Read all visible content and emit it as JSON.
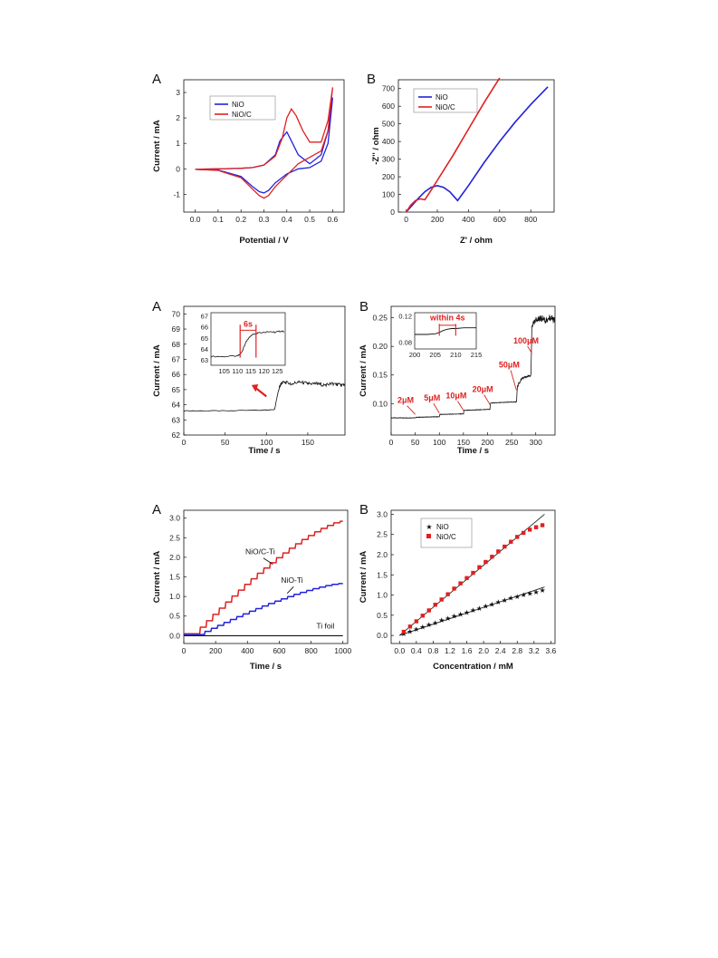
{
  "colors": {
    "nio": "#2222dd",
    "nioc": "#e02020",
    "black": "#111111"
  },
  "chart_data": [
    {
      "type": "line",
      "panel_label": "A",
      "xlabel": "Potential / V",
      "ylabel": "Current / mA",
      "xlim": [
        -0.05,
        0.65
      ],
      "ylim": [
        -1.7,
        3.5
      ],
      "xticks": [
        "0.0",
        "0.1",
        "0.2",
        "0.3",
        "0.4",
        "0.5",
        "0.6"
      ],
      "xtick_values": [
        0,
        0.1,
        0.2,
        0.3,
        0.4,
        0.5,
        0.6
      ],
      "yticks": [
        "-1",
        "0",
        "1",
        "2",
        "3"
      ],
      "ytick_values": [
        -1,
        0,
        1,
        2,
        3
      ],
      "legend": [
        "NiO",
        "NiO/C"
      ],
      "legend_position": "top-left",
      "series": [
        {
          "name": "NiO",
          "color": "nio",
          "x": [
            0,
            0.1,
            0.2,
            0.25,
            0.28,
            0.3,
            0.32,
            0.35,
            0.4,
            0.45,
            0.5,
            0.55,
            0.58,
            0.6,
            0.58,
            0.55,
            0.5,
            0.45,
            0.42,
            0.4,
            0.37,
            0.35,
            0.3,
            0.25,
            0.2,
            0.1,
            0
          ],
          "y": [
            -0.02,
            -0.05,
            -0.3,
            -0.7,
            -0.9,
            -0.95,
            -0.85,
            -0.55,
            -0.2,
            0,
            0.05,
            0.3,
            1.0,
            2.8,
            1.5,
            0.55,
            0.2,
            0.55,
            1.1,
            1.45,
            1.1,
            0.55,
            0.15,
            0.05,
            0.02,
            0,
            -0.02
          ]
        },
        {
          "name": "NiO/C",
          "color": "nioc",
          "x": [
            0,
            0.1,
            0.2,
            0.25,
            0.28,
            0.3,
            0.32,
            0.35,
            0.4,
            0.45,
            0.5,
            0.55,
            0.58,
            0.6,
            0.58,
            0.55,
            0.5,
            0.47,
            0.44,
            0.42,
            0.4,
            0.38,
            0.35,
            0.3,
            0.25,
            0.2,
            0.1,
            0
          ],
          "y": [
            -0.02,
            -0.06,
            -0.35,
            -0.8,
            -1.05,
            -1.15,
            -1.05,
            -0.7,
            -0.25,
            0.2,
            0.45,
            0.7,
            1.5,
            3.2,
            1.9,
            1.05,
            1.05,
            1.5,
            2.1,
            2.35,
            2.0,
            1.2,
            0.5,
            0.15,
            0.05,
            0.02,
            0,
            -0.02
          ]
        }
      ]
    },
    {
      "type": "line",
      "panel_label": "B",
      "xlabel": "Z' / ohm",
      "ylabel": "-Z'' / ohm",
      "xlim": [
        -50,
        950
      ],
      "ylim": [
        0,
        750
      ],
      "xticks": [
        "0",
        "200",
        "400",
        "600",
        "800"
      ],
      "xtick_values": [
        0,
        200,
        400,
        600,
        800
      ],
      "yticks": [
        "0",
        "100",
        "200",
        "300",
        "400",
        "500",
        "600",
        "700"
      ],
      "ytick_values": [
        0,
        100,
        200,
        300,
        400,
        500,
        600,
        700
      ],
      "legend": [
        "NiO",
        "NiO/C"
      ],
      "legend_position": "top-left",
      "series": [
        {
          "name": "NiO",
          "color": "nio",
          "x": [
            0,
            40,
            80,
            120,
            160,
            200,
            240,
            280,
            330,
            400,
            500,
            600,
            700,
            800,
            910
          ],
          "y": [
            0,
            40,
            80,
            115,
            140,
            150,
            140,
            115,
            65,
            150,
            280,
            400,
            510,
            610,
            710
          ]
        },
        {
          "name": "NiO/C",
          "color": "nioc",
          "x": [
            0,
            30,
            60,
            90,
            120,
            150,
            200,
            300,
            400,
            500,
            600
          ],
          "y": [
            0,
            40,
            65,
            75,
            70,
            110,
            180,
            320,
            470,
            620,
            760
          ]
        }
      ]
    },
    {
      "type": "line",
      "panel_label": "A",
      "xlabel": "Time / s",
      "ylabel": "Current / mA",
      "xlim": [
        0,
        195
      ],
      "ylim": [
        62,
        70.5
      ],
      "xticks": [
        "0",
        "50",
        "100",
        "150"
      ],
      "xtick_values": [
        0,
        50,
        100,
        150
      ],
      "yticks": [
        "62",
        "63",
        "64",
        "65",
        "66",
        "67",
        "68",
        "69",
        "70"
      ],
      "ytick_values": [
        62,
        63,
        64,
        65,
        66,
        67,
        68,
        69,
        70
      ],
      "series": [
        {
          "name": "",
          "color": "black",
          "x": [
            0,
            50,
            100,
            110,
            112,
            114,
            116,
            118,
            120,
            130,
            140,
            150,
            160,
            170,
            180,
            190,
            195
          ],
          "y": [
            63.6,
            63.6,
            63.65,
            63.7,
            64.3,
            64.8,
            65.2,
            65.4,
            65.5,
            65.4,
            65.5,
            65.4,
            65.4,
            65.3,
            65.4,
            65.3,
            65.3
          ]
        }
      ],
      "inset": {
        "xlim": [
          100,
          128
        ],
        "ylim": [
          62.5,
          67.3
        ],
        "xticks": [
          "105",
          "110",
          "115",
          "120",
          "125"
        ],
        "xtick_values": [
          105,
          110,
          115,
          120,
          125
        ],
        "yticks": [
          "63",
          "64",
          "65",
          "66",
          "67"
        ],
        "ytick_values": [
          63,
          64,
          65,
          66,
          67
        ],
        "x": [
          100,
          105,
          110,
          111,
          112,
          113,
          114,
          115,
          116,
          117,
          118,
          120,
          122,
          124,
          126,
          128
        ],
        "y": [
          63.3,
          63.3,
          63.35,
          63.5,
          63.9,
          64.5,
          64.9,
          65.2,
          65.35,
          65.4,
          65.5,
          65.5,
          65.6,
          65.5,
          65.6,
          65.6
        ],
        "annotation": "6s"
      }
    },
    {
      "type": "line",
      "panel_label": "B",
      "xlabel": "Time / s",
      "ylabel": "Current / mA",
      "xlim": [
        0,
        340
      ],
      "ylim": [
        0.045,
        0.27
      ],
      "xticks": [
        "0",
        "50",
        "100",
        "150",
        "200",
        "250",
        "300"
      ],
      "xtick_values": [
        0,
        50,
        100,
        150,
        200,
        250,
        300
      ],
      "yticks": [
        "0.10",
        "0.15",
        "0.20",
        "0.25"
      ],
      "ytick_values": [
        0.1,
        0.15,
        0.2,
        0.25
      ],
      "annotations": [
        "2μM",
        "5μM",
        "10μM",
        "20μM",
        "50μM",
        "100μM"
      ],
      "series": [
        {
          "name": "",
          "color": "black",
          "x": [
            0,
            50,
            51,
            100,
            101,
            150,
            151,
            205,
            206,
            260,
            262,
            270,
            290,
            292,
            300,
            310,
            320,
            330,
            340
          ],
          "y": [
            0.075,
            0.075,
            0.076,
            0.077,
            0.081,
            0.082,
            0.088,
            0.09,
            0.101,
            0.103,
            0.13,
            0.143,
            0.15,
            0.235,
            0.245,
            0.25,
            0.245,
            0.25,
            0.245
          ]
        }
      ],
      "inset": {
        "xlim": [
          200,
          215
        ],
        "ylim": [
          0.07,
          0.125
        ],
        "xticks": [
          "200",
          "205",
          "210",
          "215"
        ],
        "xtick_values": [
          200,
          205,
          210,
          215
        ],
        "yticks": [
          "0.08",
          "0.12"
        ],
        "ytick_values": [
          0.08,
          0.12
        ],
        "x": [
          200,
          203,
          205,
          206,
          207,
          208,
          209,
          210,
          212,
          215
        ],
        "y": [
          0.092,
          0.092,
          0.093,
          0.095,
          0.098,
          0.1,
          0.101,
          0.101,
          0.102,
          0.102
        ],
        "annotation": "within 4s"
      }
    },
    {
      "type": "line",
      "panel_label": "A",
      "xlabel": "Time / s",
      "ylabel": "Current / mA",
      "xlim": [
        0,
        1030
      ],
      "ylim": [
        -0.2,
        3.2
      ],
      "xticks": [
        "0",
        "200",
        "400",
        "600",
        "800",
        "1000"
      ],
      "xtick_values": [
        0,
        200,
        400,
        600,
        800,
        1000
      ],
      "yticks": [
        "0.0",
        "0.5",
        "1.0",
        "1.5",
        "2.0",
        "2.5",
        "3.0"
      ],
      "ytick_values": [
        0,
        0.5,
        1,
        1.5,
        2,
        2.5,
        3
      ],
      "annotations": [
        "NiO/C-Ti",
        "NiO-Ti",
        "Ti foil"
      ],
      "series": [
        {
          "name": "NiO/C-Ti",
          "color": "nioc",
          "steps_start": 100,
          "steps_dt": 40,
          "start": 0.05,
          "end": 2.92,
          "n": 23
        },
        {
          "name": "NiO-Ti",
          "color": "nio",
          "steps_start": 130,
          "steps_dt": 40,
          "start": 0.03,
          "end": 1.33,
          "n": 22
        },
        {
          "name": "Ti foil",
          "color": "black",
          "x": [
            0,
            1000
          ],
          "y": [
            0,
            0
          ]
        }
      ]
    },
    {
      "type": "scatter",
      "panel_label": "B",
      "xlabel": "Concentration / mM",
      "ylabel": "Current / mA",
      "xlim": [
        -0.2,
        3.7
      ],
      "ylim": [
        -0.2,
        3.1
      ],
      "xticks": [
        "0.0",
        "0.4",
        "0.8",
        "1.2",
        "1.6",
        "2.0",
        "2.4",
        "2.8",
        "3.2",
        "3.6"
      ],
      "xtick_values": [
        0,
        0.4,
        0.8,
        1.2,
        1.6,
        2.0,
        2.4,
        2.8,
        3.2,
        3.6
      ],
      "yticks": [
        "0.0",
        "0.5",
        "1.0",
        "1.5",
        "2.0",
        "2.5",
        "3.0"
      ],
      "ytick_values": [
        0,
        0.5,
        1,
        1.5,
        2,
        2.5,
        3
      ],
      "legend": [
        "NiO",
        "NiO/C"
      ],
      "legend_position": "top-left",
      "series": [
        {
          "name": "NiO",
          "color": "nio",
          "marker": "star",
          "x": [
            0.1,
            0.25,
            0.4,
            0.55,
            0.7,
            0.85,
            1.0,
            1.15,
            1.3,
            1.45,
            1.6,
            1.75,
            1.9,
            2.05,
            2.2,
            2.35,
            2.5,
            2.65,
            2.8,
            2.95,
            3.1,
            3.25,
            3.4
          ],
          "y": [
            0.05,
            0.1,
            0.16,
            0.22,
            0.27,
            0.32,
            0.38,
            0.43,
            0.48,
            0.53,
            0.58,
            0.63,
            0.68,
            0.73,
            0.78,
            0.83,
            0.88,
            0.93,
            0.97,
            1.01,
            1.05,
            1.08,
            1.12
          ],
          "fit": [
            [
              0,
              0
            ],
            [
              3.45,
              1.2
            ]
          ]
        },
        {
          "name": "NiO/C",
          "color": "nioc",
          "marker": "square",
          "x": [
            0.1,
            0.25,
            0.4,
            0.55,
            0.7,
            0.85,
            1.0,
            1.15,
            1.3,
            1.45,
            1.6,
            1.75,
            1.9,
            2.05,
            2.2,
            2.35,
            2.5,
            2.65,
            2.8,
            2.95,
            3.1,
            3.25,
            3.4
          ],
          "y": [
            0.09,
            0.22,
            0.35,
            0.49,
            0.62,
            0.76,
            0.89,
            1.02,
            1.16,
            1.29,
            1.42,
            1.55,
            1.69,
            1.82,
            1.95,
            2.08,
            2.2,
            2.32,
            2.44,
            2.54,
            2.62,
            2.68,
            2.73
          ],
          "fit": [
            [
              0,
              0
            ],
            [
              3.45,
              3.0
            ]
          ]
        }
      ]
    }
  ]
}
